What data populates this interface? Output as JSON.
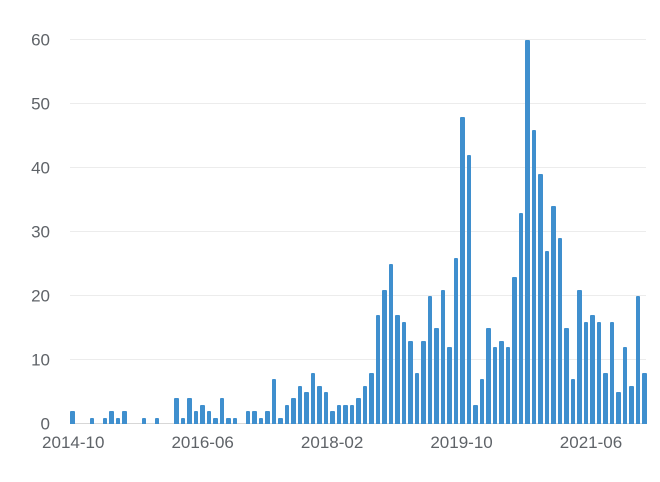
{
  "chart_data": {
    "type": "bar",
    "title": "",
    "xlabel": "",
    "ylabel": "",
    "x_unit": "year-month",
    "categories": [
      "2014-10",
      "2014-11",
      "2014-12",
      "2015-01",
      "2015-02",
      "2015-03",
      "2015-04",
      "2015-05",
      "2015-06",
      "2015-07",
      "2015-08",
      "2015-09",
      "2015-10",
      "2015-11",
      "2015-12",
      "2016-01",
      "2016-02",
      "2016-03",
      "2016-04",
      "2016-05",
      "2016-06",
      "2016-07",
      "2016-08",
      "2016-09",
      "2016-10",
      "2016-11",
      "2016-12",
      "2017-01",
      "2017-02",
      "2017-03",
      "2017-04",
      "2017-05",
      "2017-06",
      "2017-07",
      "2017-08",
      "2017-09",
      "2017-10",
      "2017-11",
      "2017-12",
      "2018-01",
      "2018-02",
      "2018-03",
      "2018-04",
      "2018-05",
      "2018-06",
      "2018-07",
      "2018-08",
      "2018-09",
      "2018-10",
      "2018-11",
      "2018-12",
      "2019-01",
      "2019-02",
      "2019-03",
      "2019-04",
      "2019-05",
      "2019-06",
      "2019-07",
      "2019-08",
      "2019-09",
      "2019-10",
      "2019-11",
      "2019-12",
      "2020-01",
      "2020-02",
      "2020-03",
      "2020-04",
      "2020-05",
      "2020-06",
      "2020-07",
      "2020-08",
      "2020-09",
      "2020-10",
      "2020-11",
      "2020-12",
      "2021-01",
      "2021-02",
      "2021-03",
      "2021-04",
      "2021-05",
      "2021-06",
      "2021-07",
      "2021-08",
      "2021-09",
      "2021-10",
      "2021-11",
      "2021-12",
      "2022-01",
      "2022-02"
    ],
    "values": [
      2,
      0,
      0,
      1,
      0,
      1,
      2,
      1,
      2,
      0,
      0,
      1,
      0,
      1,
      0,
      0,
      4,
      1,
      4,
      2,
      3,
      2,
      1,
      4,
      1,
      1,
      0,
      2,
      2,
      1,
      2,
      7,
      1,
      3,
      4,
      6,
      5,
      8,
      6,
      5,
      2,
      3,
      3,
      3,
      4,
      6,
      8,
      17,
      21,
      25,
      17,
      16,
      13,
      8,
      13,
      20,
      15,
      21,
      12,
      26,
      48,
      42,
      3,
      7,
      15,
      12,
      13,
      12,
      23,
      33,
      60,
      46,
      39,
      27,
      34,
      29,
      15,
      7,
      21,
      16,
      17,
      16,
      8,
      16,
      5,
      12,
      6,
      20,
      8
    ],
    "ylim": [
      0,
      60
    ],
    "yticks": [
      0,
      10,
      20,
      30,
      40,
      50,
      60
    ],
    "x_tick_labels": [
      "2014-10",
      "2016-06",
      "2018-02",
      "2019-10",
      "2021-06"
    ],
    "x_tick_indices": [
      0,
      20,
      40,
      60,
      80
    ],
    "bar_color": "#3f8fce",
    "axis_text_color": "#5f6368",
    "gridline_color": "#ececec",
    "grid": true,
    "legend": "none"
  }
}
